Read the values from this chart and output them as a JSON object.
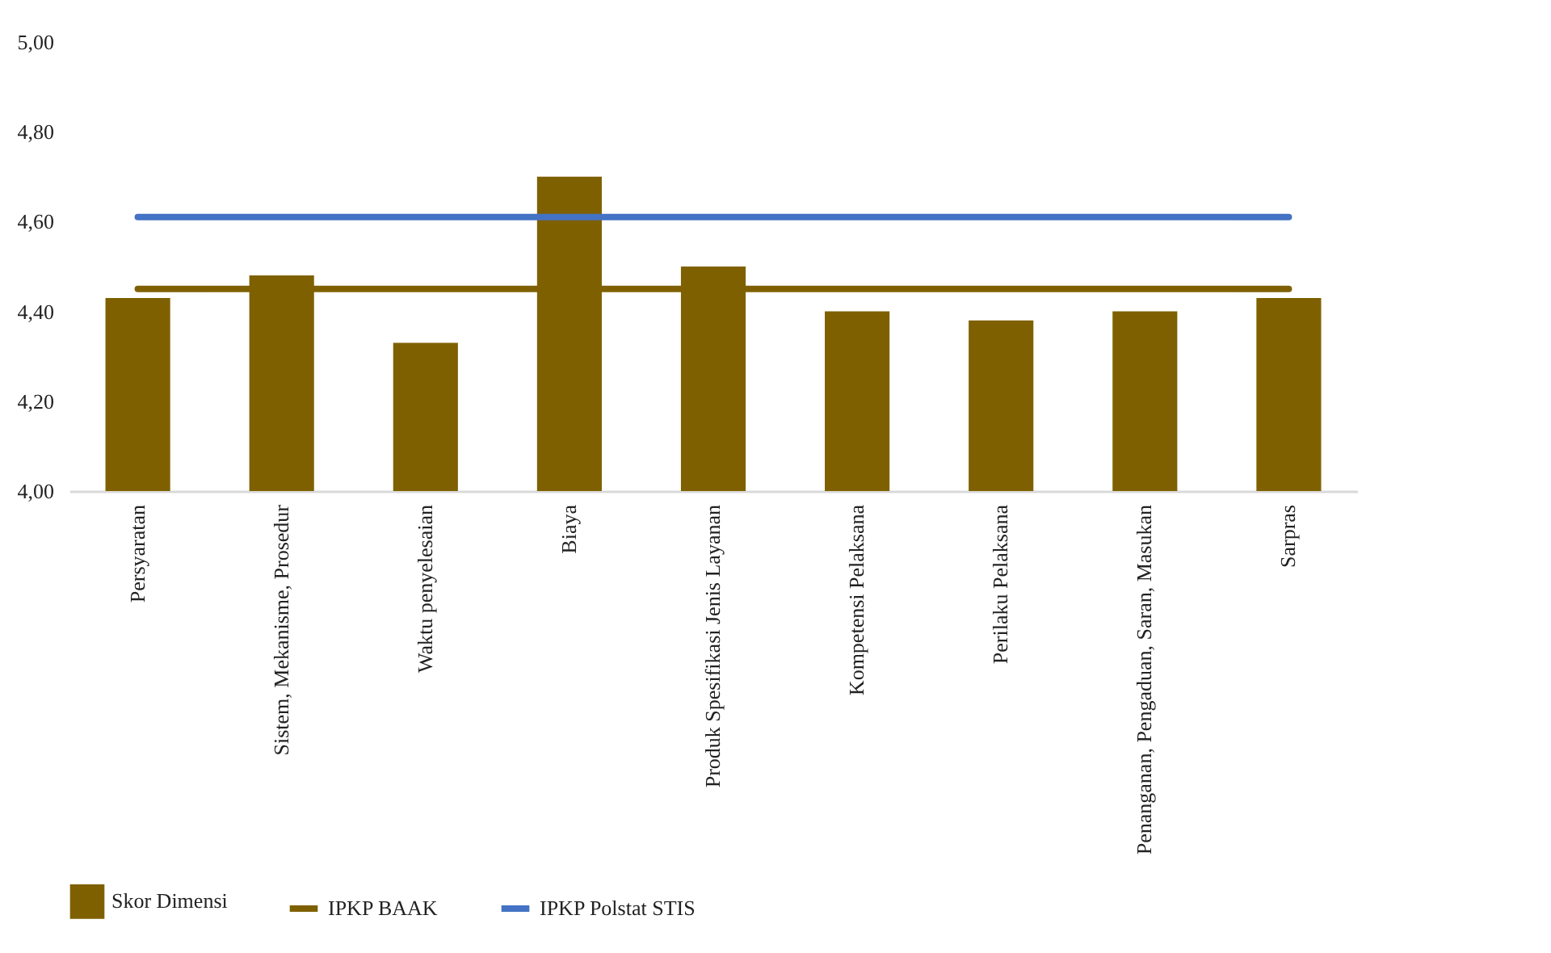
{
  "chart_data": {
    "type": "bar",
    "categories": [
      "Persyaratan",
      "Sistem, Mekanisme, Prosedur",
      "Waktu penyelesaian",
      "Biaya",
      "Produk Spesifikasi Jenis Layanan",
      "Kompetensi Pelaksana",
      "Perilaku Pelaksana",
      "Penanganan, Pengaduan, Saran, Masukan",
      "Sarpras"
    ],
    "series": [
      {
        "name": "Skor Dimensi",
        "color": "#7f6000",
        "values": [
          4.43,
          4.48,
          4.33,
          4.7,
          4.5,
          4.4,
          4.38,
          4.4,
          4.43
        ]
      },
      {
        "name": "IPKP BAAK",
        "type": "line",
        "color": "#7f6000",
        "values": [
          4.45,
          4.45,
          4.45,
          4.45,
          4.45,
          4.45,
          4.45,
          4.45,
          4.45
        ]
      },
      {
        "name": "IPKP Polstat STIS",
        "type": "line",
        "color": "#4472c4",
        "values": [
          4.61,
          4.61,
          4.61,
          4.61,
          4.61,
          4.61,
          4.61,
          4.61,
          4.61
        ]
      }
    ],
    "ylim": [
      4.0,
      5.0
    ],
    "yticks": [
      {
        "value": 4.0,
        "label": "4,00"
      },
      {
        "value": 4.2,
        "label": "4,20"
      },
      {
        "value": 4.4,
        "label": "4,40"
      },
      {
        "value": 4.6,
        "label": "4,60"
      },
      {
        "value": 4.8,
        "label": "4,80"
      },
      {
        "value": 5.0,
        "label": "5,00"
      }
    ],
    "grid": false,
    "legend": "bottom"
  }
}
